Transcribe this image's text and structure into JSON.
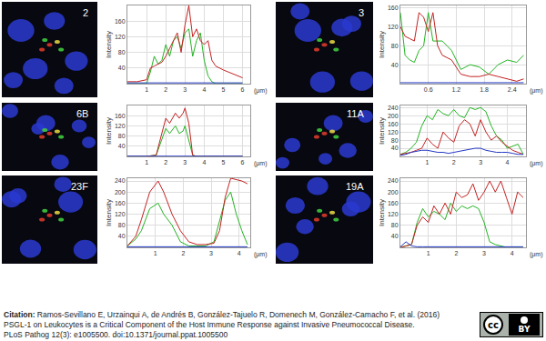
{
  "chart_data": [
    {
      "type": "line",
      "title": "2",
      "xlabel": "(μm)",
      "ylabel": "Intensity",
      "x": [
        0,
        0.5,
        1,
        1.2,
        1.4,
        1.6,
        1.8,
        2,
        2.2,
        2.4,
        2.6,
        2.8,
        3,
        3.2,
        3.4,
        3.6,
        3.8,
        4,
        4.2,
        4.4,
        4.6,
        5,
        5.5,
        6
      ],
      "series": [
        {
          "color": "#22b422",
          "values": [
            0,
            0,
            0,
            30,
            70,
            50,
            60,
            100,
            70,
            110,
            120,
            90,
            130,
            140,
            70,
            110,
            130,
            60,
            20,
            5,
            0,
            0,
            0,
            0
          ]
        },
        {
          "color": "#c42222",
          "values": [
            5,
            5,
            10,
            40,
            45,
            50,
            55,
            70,
            90,
            110,
            130,
            80,
            150,
            200,
            120,
            140,
            110,
            100,
            110,
            60,
            45,
            35,
            25,
            15
          ]
        },
        {
          "color": "#2238c4",
          "values": [
            2,
            2,
            2,
            2,
            2,
            2,
            2,
            2,
            2,
            2,
            2,
            2,
            2,
            2,
            2,
            2,
            2,
            2,
            2,
            2,
            2,
            2,
            2,
            2
          ]
        }
      ],
      "xlim": [
        0,
        6.4
      ],
      "xticks": [
        1,
        2,
        3,
        4,
        5,
        6
      ],
      "ylim": [
        0,
        200
      ],
      "yticks": [
        40,
        80,
        120,
        160
      ],
      "grid": true
    },
    {
      "type": "line",
      "title": "3",
      "xlabel": "(μm)",
      "ylabel": "Intensity",
      "x": [
        0,
        0.1,
        0.2,
        0.3,
        0.4,
        0.5,
        0.6,
        0.7,
        0.8,
        0.9,
        1.0,
        1.1,
        1.3,
        1.5,
        1.7,
        1.9,
        2.1,
        2.3,
        2.5,
        2.65
      ],
      "series": [
        {
          "color": "#22b422",
          "values": [
            150,
            60,
            50,
            45,
            70,
            80,
            150,
            90,
            90,
            90,
            80,
            70,
            30,
            40,
            35,
            20,
            40,
            50,
            45,
            60
          ]
        },
        {
          "color": "#c42222",
          "values": [
            120,
            100,
            95,
            90,
            150,
            140,
            110,
            150,
            80,
            60,
            55,
            50,
            20,
            15,
            15,
            20,
            15,
            10,
            5,
            10
          ]
        },
        {
          "color": "#2238c4",
          "values": [
            2,
            2,
            2,
            2,
            2,
            2,
            2,
            2,
            2,
            2,
            2,
            2,
            2,
            2,
            2,
            2,
            2,
            2,
            2,
            2
          ]
        }
      ],
      "xlim": [
        0,
        2.7
      ],
      "xticks": [
        0.6,
        1.2,
        1.8,
        2.4
      ],
      "ylim": [
        0,
        165
      ],
      "yticks": [
        40,
        80,
        120,
        160
      ],
      "grid": true
    },
    {
      "type": "line",
      "title": "6B",
      "xlabel": "(μm)",
      "ylabel": "Intensity",
      "x": [
        0,
        0.5,
        1,
        1.5,
        1.7,
        1.9,
        2.0,
        2.2,
        2.4,
        2.5,
        2.7,
        2.9,
        3.0,
        3.2,
        3.4,
        3.6,
        4,
        5,
        6
      ],
      "series": [
        {
          "color": "#22b422",
          "values": [
            0,
            0,
            0,
            5,
            50,
            90,
            110,
            90,
            110,
            120,
            90,
            100,
            120,
            60,
            5,
            0,
            0,
            0,
            0
          ]
        },
        {
          "color": "#c42222",
          "values": [
            0,
            0,
            0,
            5,
            60,
            120,
            150,
            130,
            160,
            170,
            150,
            170,
            190,
            130,
            5,
            0,
            0,
            0,
            0
          ]
        },
        {
          "color": "#2238c4",
          "values": [
            1,
            1,
            1,
            1,
            1,
            1,
            1,
            1,
            1,
            1,
            1,
            1,
            1,
            1,
            1,
            1,
            1,
            1,
            1
          ]
        }
      ],
      "xlim": [
        0,
        6.4
      ],
      "xticks": [
        1,
        2,
        3,
        4,
        5,
        6
      ],
      "ylim": [
        0,
        200
      ],
      "yticks": [
        40,
        80,
        120,
        160
      ],
      "grid": true
    },
    {
      "type": "line",
      "title": "11A",
      "xlabel": "(μm)",
      "ylabel": "Intensity",
      "x": [
        0,
        0.2,
        0.4,
        0.6,
        0.8,
        1.0,
        1.2,
        1.4,
        1.6,
        1.8,
        2.0,
        2.2,
        2.4,
        2.6,
        2.8,
        3.0,
        3.2,
        3.4,
        3.6,
        3.8,
        4.0,
        4.2,
        4.4,
        4.6
      ],
      "series": [
        {
          "color": "#22b422",
          "values": [
            10,
            20,
            40,
            70,
            150,
            200,
            180,
            230,
            210,
            200,
            230,
            200,
            190,
            240,
            230,
            240,
            220,
            150,
            100,
            80,
            40,
            50,
            60,
            10
          ]
        },
        {
          "color": "#c42222",
          "values": [
            10,
            15,
            20,
            30,
            40,
            90,
            60,
            40,
            120,
            90,
            70,
            150,
            180,
            160,
            100,
            180,
            120,
            80,
            100,
            70,
            50,
            30,
            20,
            10
          ]
        },
        {
          "color": "#2238c4",
          "values": [
            5,
            10,
            20,
            25,
            30,
            30,
            25,
            20,
            20,
            15,
            20,
            25,
            30,
            35,
            40,
            40,
            30,
            25,
            20,
            20,
            20,
            15,
            10,
            10
          ]
        }
      ],
      "xlim": [
        0,
        4.7
      ],
      "xticks": [
        1,
        2,
        3,
        4
      ],
      "ylim": [
        0,
        250
      ],
      "yticks": [
        40,
        80,
        120,
        160,
        200,
        240
      ],
      "grid": true
    },
    {
      "type": "line",
      "title": "23F",
      "xlabel": "(μm)",
      "ylabel": "Intensity",
      "x": [
        0,
        0.3,
        0.5,
        0.8,
        1.1,
        1.3,
        1.6,
        1.9,
        2.2,
        2.5,
        2.8,
        3.1,
        3.3,
        3.5,
        3.7,
        3.9,
        4.1,
        4.3
      ],
      "series": [
        {
          "color": "#22b422",
          "values": [
            5,
            30,
            60,
            140,
            160,
            120,
            80,
            20,
            5,
            5,
            5,
            20,
            100,
            170,
            200,
            120,
            60,
            10
          ]
        },
        {
          "color": "#c42222",
          "values": [
            5,
            40,
            100,
            200,
            240,
            200,
            120,
            60,
            20,
            10,
            10,
            15,
            60,
            180,
            250,
            245,
            240,
            230
          ]
        },
        {
          "color": "#2238c4",
          "values": [
            2,
            2,
            2,
            2,
            2,
            2,
            2,
            2,
            2,
            2,
            2,
            2,
            2,
            2,
            2,
            2,
            2,
            2
          ]
        }
      ],
      "xlim": [
        0,
        4.4
      ],
      "xticks": [
        1,
        2,
        3,
        4
      ],
      "ylim": [
        0,
        250
      ],
      "yticks": [
        40,
        80,
        120,
        160,
        200,
        240
      ],
      "grid": true
    },
    {
      "type": "line",
      "title": "19A",
      "xlabel": "(μm)",
      "ylabel": "Intensity",
      "x": [
        0,
        0.2,
        0.4,
        0.6,
        0.8,
        1.0,
        1.2,
        1.4,
        1.6,
        1.8,
        2.0,
        2.2,
        2.4,
        2.6,
        2.8,
        3.0,
        3.2,
        3.4,
        3.6,
        3.8,
        4.0,
        4.2,
        4.4
      ],
      "series": [
        {
          "color": "#22b422",
          "values": [
            0,
            5,
            10,
            90,
            140,
            110,
            130,
            120,
            100,
            160,
            130,
            150,
            140,
            150,
            140,
            90,
            20,
            10,
            5,
            0,
            0,
            0,
            0
          ]
        },
        {
          "color": "#c42222",
          "values": [
            0,
            5,
            10,
            80,
            110,
            90,
            150,
            120,
            160,
            120,
            200,
            180,
            190,
            230,
            170,
            200,
            240,
            200,
            240,
            180,
            120,
            200,
            180
          ]
        },
        {
          "color": "#2238c4",
          "values": [
            2,
            20,
            5,
            2,
            2,
            2,
            2,
            2,
            2,
            2,
            2,
            2,
            2,
            2,
            2,
            2,
            2,
            2,
            2,
            2,
            2,
            2,
            2
          ]
        }
      ],
      "xlim": [
        0,
        4.5
      ],
      "xticks": [
        1,
        2,
        3,
        4
      ],
      "ylim": [
        0,
        250
      ],
      "yticks": [
        40,
        80,
        120,
        160,
        200,
        240
      ],
      "grid": true
    }
  ],
  "citation": {
    "label": "Citation:",
    "lines": [
      "Ramos-Sevillano E, Urzainqui A, de Andrés B, González-Tajuelo R, Domenech M, González-Camacho F, et al. (2016)",
      "PSGL-1 on Leukocytes is a Critical Component of the Host Immune Response against Invasive Pneumococcal Disease.",
      "PLoS Pathog 12(3): e1005500. doi:10.1371/journal.ppat.1005500"
    ]
  },
  "license_badge": [
    "cc",
    "BY"
  ]
}
